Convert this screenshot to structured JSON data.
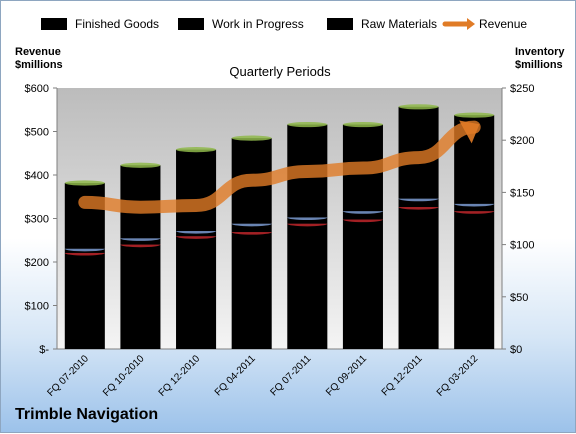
{
  "company": "Trimble Navigation",
  "chart_data": {
    "type": "bar",
    "subtitle": "Quarterly Periods",
    "left_axis": {
      "label_line1": "Revenue",
      "label_line2": "$millions",
      "ticks": [
        "$-",
        "$100",
        "$200",
        "$300",
        "$400",
        "$500",
        "$600"
      ],
      "range": [
        0,
        600
      ]
    },
    "right_axis": {
      "label_line1": "Inventory",
      "label_line2": "$millions",
      "ticks": [
        "$0",
        "$50",
        "$100",
        "$150",
        "$200",
        "$250"
      ],
      "range": [
        0,
        250
      ]
    },
    "categories": [
      "FQ 07-2010",
      "FQ 10-2010",
      "FQ 12-2010",
      "FQ 04-2011",
      "FQ 07-2011",
      "FQ 09-2011",
      "FQ 12-2011",
      "FQ 03-2012"
    ],
    "stacked": true,
    "series": [
      {
        "name": "Finished Goods",
        "axis": "right",
        "color": "#c0262a",
        "values": [
          92,
          100,
          108,
          112,
          120,
          124,
          136,
          132
        ]
      },
      {
        "name": "Work in Progress",
        "axis": "right",
        "color": "#7b9bd1",
        "values": [
          4,
          6,
          5,
          8,
          6,
          8,
          8,
          7
        ]
      },
      {
        "name": "Raw Materials",
        "axis": "right",
        "color": "#8fb94b",
        "values": [
          63,
          70,
          78,
          82,
          89,
          83,
          88,
          85
        ]
      },
      {
        "name": "Revenue",
        "type": "line",
        "axis": "left",
        "color": "#e07b26",
        "values": [
          337,
          326,
          330,
          388,
          408,
          416,
          440,
          510
        ]
      }
    ],
    "legend_position": "top",
    "grid": false
  }
}
